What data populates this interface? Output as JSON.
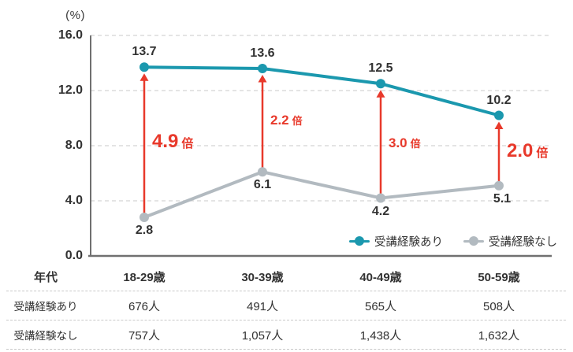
{
  "unit_label": "(%)",
  "chart_data": {
    "type": "line",
    "categories": [
      "18-29歳",
      "30-39歳",
      "40-49歳",
      "50-59歳"
    ],
    "series": [
      {
        "name": "受講経験あり",
        "values": [
          13.7,
          13.6,
          12.5,
          10.2
        ],
        "color": "#1B98AE"
      },
      {
        "name": "受講経験なし",
        "values": [
          2.8,
          6.1,
          4.2,
          5.1
        ],
        "color": "#B2BAC0"
      }
    ],
    "ylabel": "(%)",
    "ylim": [
      0,
      16
    ],
    "yticks": [
      0,
      4,
      8,
      12,
      16
    ],
    "grid": "horizontal dashed",
    "legend_position": "bottom-right inside plot",
    "annotations": [
      {
        "value": "4.9",
        "suffix": "倍",
        "category": "18-29歳",
        "emphasis": true
      },
      {
        "value": "2.2",
        "suffix": "倍",
        "category": "30-39歳",
        "emphasis": false
      },
      {
        "value": "3.0",
        "suffix": "倍",
        "category": "40-49歳",
        "emphasis": false
      },
      {
        "value": "2.0",
        "suffix": "倍",
        "category": "50-59歳",
        "emphasis": true
      }
    ],
    "annotation_color": "#E8392B"
  },
  "colors": {
    "series_with_experience": "#1B98AE",
    "series_without_experience": "#B2BAC0",
    "arrow_red": "#E8392B",
    "text": "#323232",
    "gridline": "#DBDBDB",
    "axis": "#707070",
    "table_divider": "#C9C9C9"
  },
  "legend": {
    "items": [
      "受講経験あり",
      "受講経験なし"
    ]
  },
  "table": {
    "header": [
      "年代",
      "18-29歳",
      "30-39歳",
      "40-49歳",
      "50-59歳"
    ],
    "rows": [
      {
        "label": "受講経験あり",
        "values": [
          "676人",
          "491人",
          "565人",
          "508人"
        ]
      },
      {
        "label": "受講経験なし",
        "values": [
          "757人",
          "1,057人",
          "1,438人",
          "1,632人"
        ]
      }
    ]
  }
}
